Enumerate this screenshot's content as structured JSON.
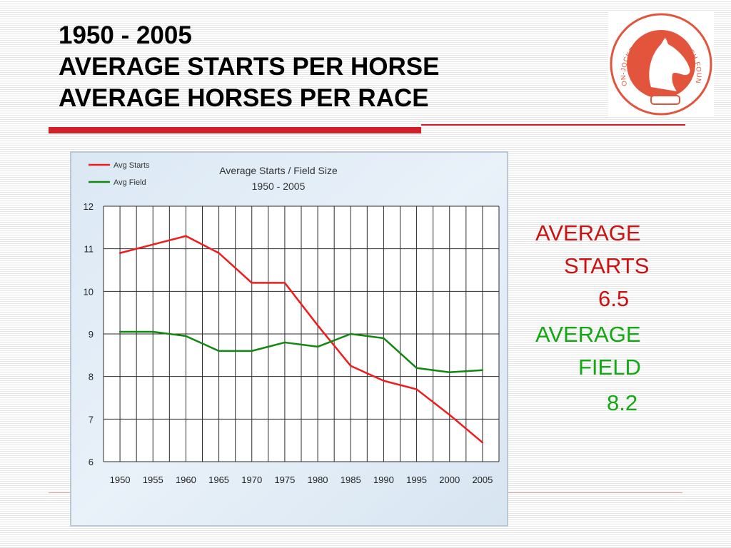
{
  "slide": {
    "title_lines": [
      "1950 - 2005",
      "AVERAGE STARTS PER HORSE",
      "AVERAGE HORSES PER RACE"
    ],
    "logo_text": "GRAYSON-JOCKEY CLUB RESEARCH FOUNDATION"
  },
  "stats": {
    "starts_label_1": "AVERAGE",
    "starts_label_2": "STARTS",
    "starts_value": "6.5",
    "field_label_1": "AVERAGE",
    "field_label_2": "FIELD",
    "field_value": "8.2",
    "starts_color": "#cc1111",
    "field_color": "#11aa11"
  },
  "chart_data": {
    "type": "line",
    "title": "Average Starts / Field Size",
    "subtitle": "1950 - 2005",
    "xlabel": "",
    "ylabel": "",
    "x": [
      1950,
      1955,
      1960,
      1965,
      1970,
      1975,
      1980,
      1985,
      1990,
      1995,
      2000,
      2005
    ],
    "ylim": [
      6,
      12
    ],
    "yticks": [
      6,
      7,
      8,
      9,
      10,
      11,
      12
    ],
    "grid": true,
    "legend_position": "top-left",
    "series": [
      {
        "name": "Avg Starts",
        "color": "#ee1c1c",
        "values": [
          10.9,
          11.1,
          11.3,
          10.9,
          10.2,
          10.2,
          9.2,
          8.25,
          7.9,
          7.7,
          7.1,
          6.45
        ]
      },
      {
        "name": "Avg Field",
        "color": "#118811",
        "values": [
          9.05,
          9.05,
          8.95,
          8.6,
          8.6,
          8.8,
          8.7,
          9.0,
          8.9,
          8.2,
          8.1,
          8.15
        ]
      }
    ]
  }
}
